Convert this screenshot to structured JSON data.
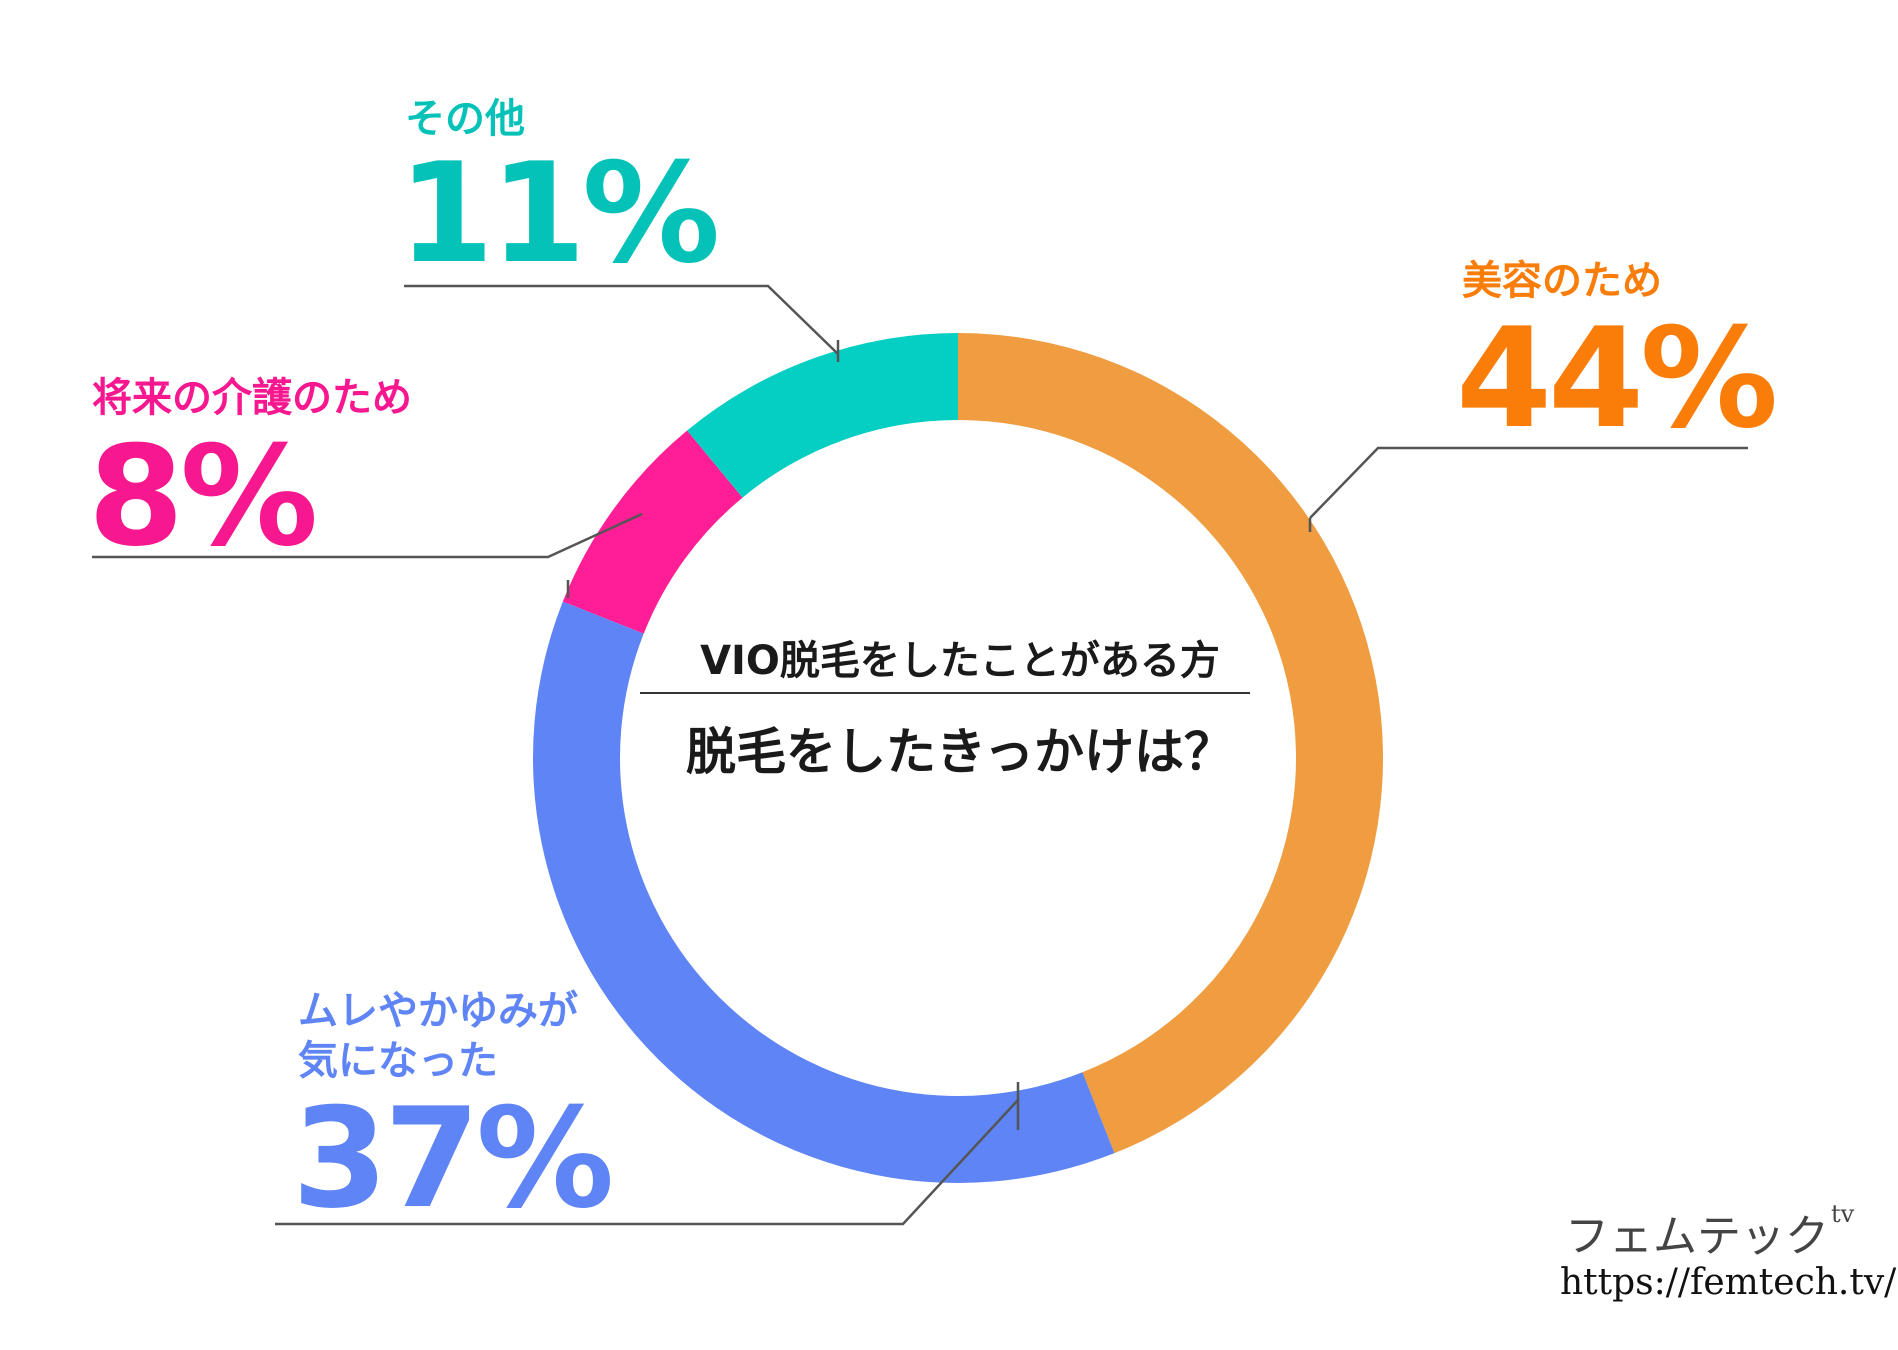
{
  "chart_data": {
    "type": "pie",
    "variant": "donut",
    "title": "VIO脱毛をしたことがある方",
    "subtitle": "脱毛をしたきっかけは？",
    "unit": "%",
    "slices": [
      {
        "label": "美容のため",
        "value": 44,
        "display": "44%",
        "color": "#F09C40",
        "text_color": "#FA7D09"
      },
      {
        "label": "ムレやかゆみが気になった",
        "label_lines": [
          "ムレやかゆみが",
          "気になった"
        ],
        "value": 37,
        "display": "37%",
        "color": "#5E84F5",
        "text_color": "#5E84F5"
      },
      {
        "label": "将来の介護のため",
        "value": 8,
        "display": "8%",
        "color": "#FF1E96",
        "text_color": "#F7178F"
      },
      {
        "label": "その他",
        "value": 11,
        "display": "11%",
        "color": "#05CEC2",
        "text_color": "#05C2B8"
      }
    ],
    "start": "top",
    "direction": "clockwise"
  },
  "brand": {
    "name": "フェムテック",
    "suffix": "tv",
    "url": "https://femtech.tv/"
  }
}
